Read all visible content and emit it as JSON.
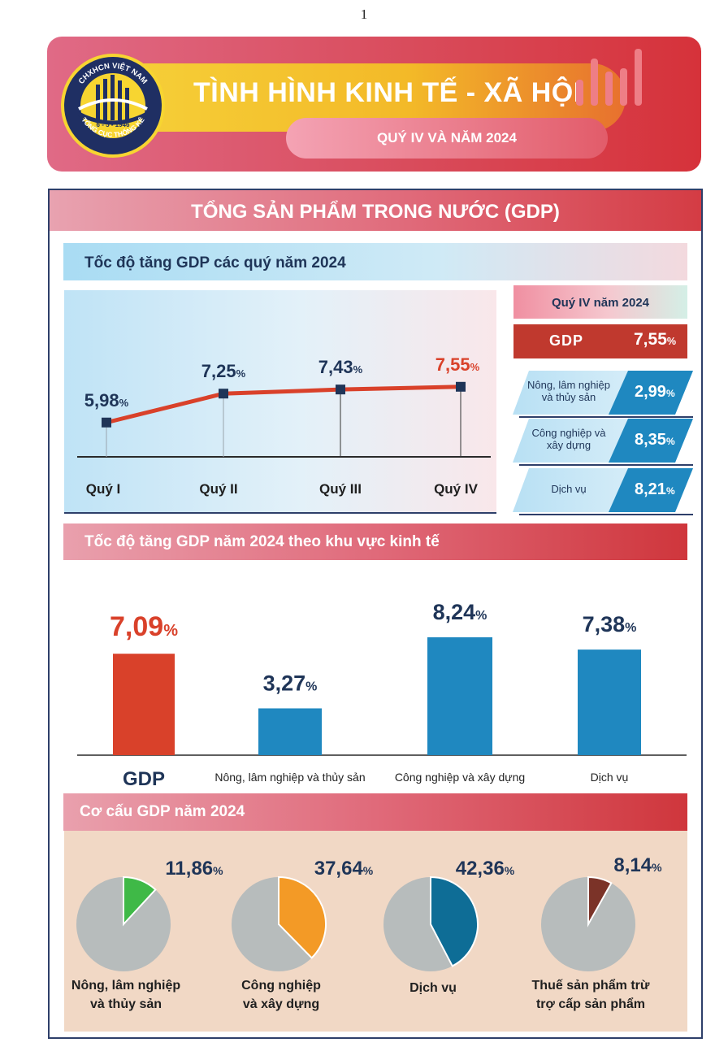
{
  "page_number": "1",
  "header": {
    "title": "TÌNH HÌNH KINH TẾ - XÃ HỘI",
    "subtitle": "QUÝ IV VÀ NĂM 2024",
    "logo": {
      "top_text": "CHXHCN VIỆT NAM",
      "date": "6 - 5 - 1946",
      "bottom_text": "TỔNG CỤC THỐNG KÊ"
    }
  },
  "section_title": "TỔNG SẢN PHẨM TRONG NƯỚC (GDP)",
  "quarterly": {
    "heading": "Tốc độ tăng GDP các quý năm 2024",
    "panel_heading": "Quý IV năm 2024",
    "gdp_label": "GDP",
    "gdp_value": "7,55",
    "sectors": [
      {
        "label_line1": "Nông, lâm nghiệp",
        "label_line2": "và thủy sản",
        "value": "2,99"
      },
      {
        "label_line1": "Công nghiệp và",
        "label_line2": "xây dựng",
        "value": "8,35"
      },
      {
        "label_line1": "Dịch vụ",
        "label_line2": "",
        "value": "8,21"
      }
    ]
  },
  "sector_growth": {
    "heading": "Tốc độ tăng GDP năm 2024 theo khu vực kinh tế"
  },
  "structure": {
    "heading": "Cơ cấu GDP năm 2024"
  },
  "percent_sign": "%",
  "colors": {
    "navy": "#1f3558",
    "red": "#d9412a",
    "blue": "#1f88c0",
    "green": "#3fb947",
    "orange": "#f39a26",
    "teal": "#0e6d96",
    "brown": "#7b3328",
    "gray": "#b7bcbc"
  },
  "chart_data": [
    {
      "type": "line",
      "title": "Tốc độ tăng GDP các quý năm 2024",
      "categories": [
        "Quý I",
        "Quý II",
        "Quý III",
        "Quý IV"
      ],
      "values": [
        5.98,
        7.25,
        7.43,
        7.55
      ],
      "labels": [
        "5,98",
        "7,25",
        "7,43",
        "7,55"
      ],
      "unit": "%",
      "ylim": [
        0,
        10
      ],
      "highlight_last": true
    },
    {
      "type": "bar",
      "title": "Tốc độ tăng GDP năm 2024 theo khu vực kinh tế",
      "categories": [
        "GDP",
        "Nông, lâm nghiệp và thủy sản",
        "Công nghiệp và xây dựng",
        "Dịch vụ"
      ],
      "values": [
        7.09,
        3.27,
        8.24,
        7.38
      ],
      "labels": [
        "7,09",
        "3,27",
        "8,24",
        "7,38"
      ],
      "unit": "%",
      "ylim": [
        0,
        10
      ],
      "highlight_first": true
    },
    {
      "type": "pie",
      "title": "Cơ cấu GDP năm 2024",
      "items": [
        {
          "name_line1": "Nông, lâm nghiệp",
          "name_line2": "và thủy sản",
          "value": 11.86,
          "label": "11,86",
          "color": "#3fb947"
        },
        {
          "name_line1": "Công nghiệp",
          "name_line2": "và xây dựng",
          "value": 37.64,
          "label": "37,64",
          "color": "#f39a26"
        },
        {
          "name_line1": "Dịch vụ",
          "name_line2": "",
          "value": 42.36,
          "label": "42,36",
          "color": "#0e6d96"
        },
        {
          "name_line1": "Thuế sản phẩm trừ",
          "name_line2": "trợ cấp sản phẩm",
          "value": 8.14,
          "label": "8,14",
          "color": "#7b3328"
        }
      ],
      "unit": "%"
    }
  ]
}
